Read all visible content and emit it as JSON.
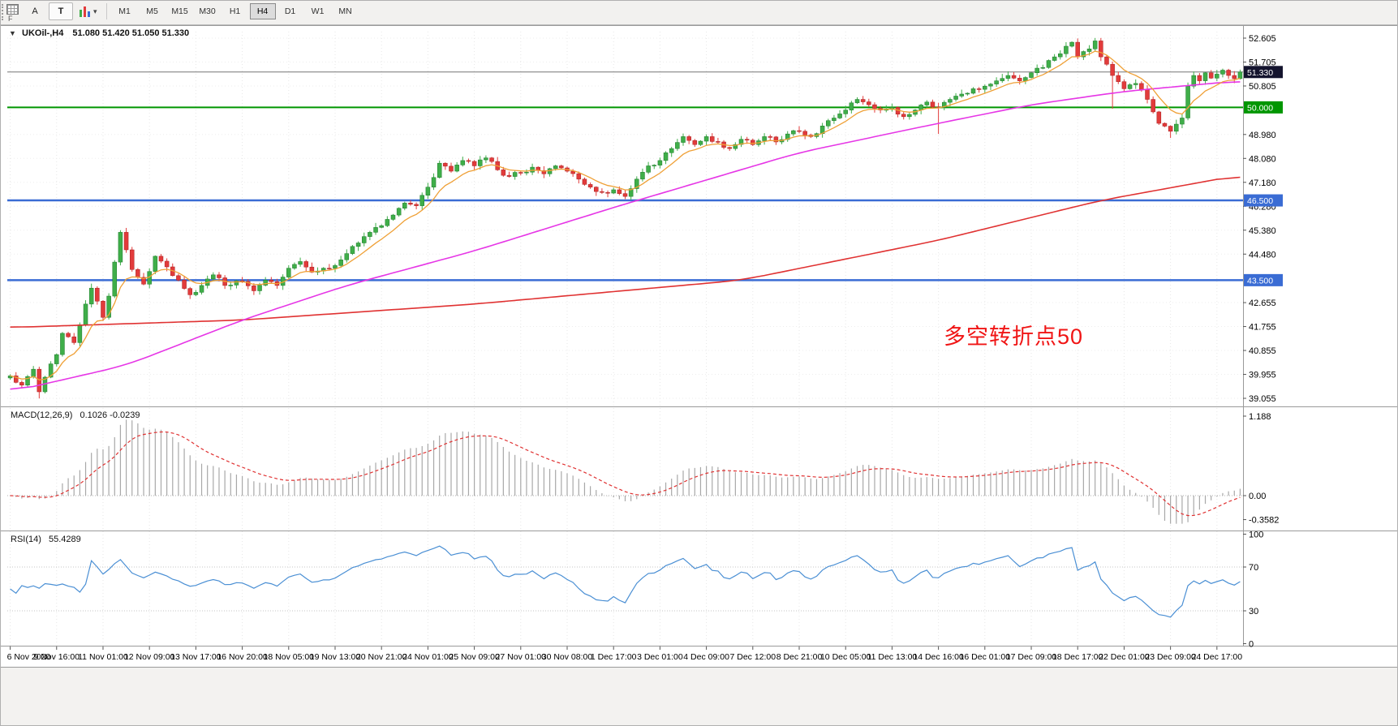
{
  "toolbar": {
    "buttons": {
      "annotate_text": "A",
      "text_tool": "T"
    },
    "indicator_caret": "▾",
    "timeframes": [
      "M1",
      "M5",
      "M15",
      "M30",
      "H1",
      "H4",
      "D1",
      "W1",
      "MN"
    ],
    "selected_timeframe": "H4",
    "f_label": "F"
  },
  "chart": {
    "title": "UKOil-,H4",
    "ohlc": "51.080 51.420 51.050 51.330",
    "collapse_icon": "▼",
    "annotation": "多空转折点50"
  },
  "indicators": {
    "macd": {
      "label": "MACD(12,26,9)",
      "values": "0.1026 -0.0239"
    },
    "rsi": {
      "label": "RSI(14)",
      "value": "55.4289"
    }
  },
  "chart_data": {
    "type": "candlestick",
    "symbol": "UKOil-",
    "timeframe": "H4",
    "bar_count": 213,
    "bars_per_label": 8,
    "current_bar": {
      "open": 51.08,
      "high": 51.42,
      "low": 51.05,
      "close": 51.33
    },
    "macd_params": [
      12,
      26,
      9
    ],
    "rsi_period": 14,
    "colors": {
      "bull": "#3fae49",
      "bull_border": "#1d7a2a",
      "bear": "#e23b3b",
      "bear_border": "#a81f1f",
      "ma_fast": "#efa036",
      "ma_mid": "#e636e6",
      "ma_slow": "#e03232",
      "macd_hist": "#a8a8a8",
      "macd_signal": "#e03232",
      "rsi": "#4a8fd4",
      "grid": "#e7e7e7",
      "hline_green": "#009600",
      "hline_blue": "#3a6cd4",
      "price_line": "#777777"
    },
    "hlines": [
      {
        "price": 50.0,
        "color": "#009600",
        "width": 2
      },
      {
        "price": 46.5,
        "color": "#3a6cd4",
        "width": 2.5
      },
      {
        "price": 43.5,
        "color": "#3a6cd4",
        "width": 2.5
      }
    ],
    "current_price_line": {
      "price": 51.33
    },
    "price_axis": {
      "labels": [
        {
          "v": 52.605,
          "t": "52.605"
        },
        {
          "v": 51.705,
          "t": "51.705"
        },
        {
          "v": 50.805,
          "t": "50.805"
        },
        {
          "v": 48.98,
          "t": "48.980"
        },
        {
          "v": 48.08,
          "t": "48.080"
        },
        {
          "v": 47.18,
          "t": "47.180"
        },
        {
          "v": 46.28,
          "t": "46.280"
        },
        {
          "v": 45.38,
          "t": "45.380"
        },
        {
          "v": 44.48,
          "t": "44.480"
        },
        {
          "v": 42.655,
          "t": "42.655"
        },
        {
          "v": 41.755,
          "t": "41.755"
        },
        {
          "v": 40.855,
          "t": "40.855"
        },
        {
          "v": 39.955,
          "t": "39.955"
        },
        {
          "v": 39.055,
          "t": "39.055"
        }
      ],
      "badges": [
        {
          "v": 51.33,
          "t": "51.330",
          "bg": "#14142e"
        },
        {
          "v": 50.0,
          "t": "50.000",
          "bg": "#009600"
        },
        {
          "v": 46.5,
          "t": "46.500",
          "bg": "#3a6cd4"
        },
        {
          "v": 43.5,
          "t": "43.500",
          "bg": "#3a6cd4"
        }
      ]
    },
    "macd_axis": [
      {
        "v": 1.188,
        "t": "1.188"
      },
      {
        "v": 0,
        "t": "0.00"
      },
      {
        "v": -0.3582,
        "t": "-0.3582"
      }
    ],
    "rsi_axis": [
      {
        "v": 100,
        "t": "100"
      },
      {
        "v": 70,
        "t": "70"
      },
      {
        "v": 30,
        "t": "30"
      },
      {
        "v": 0,
        "t": "0"
      }
    ],
    "rsi_levels": [
      70,
      30
    ],
    "x_labels": [
      "6 Nov 2020",
      "9 Nov 16:00",
      "11 Nov 01:00",
      "12 Nov 09:00",
      "13 Nov 17:00",
      "16 Nov 20:00",
      "18 Nov 05:00",
      "19 Nov 13:00",
      "20 Nov 21:00",
      "24 Nov 01:00",
      "25 Nov 09:00",
      "27 Nov 01:00",
      "30 Nov 08:00",
      "1 Dec 17:00",
      "3 Dec 01:00",
      "4 Dec 09:00",
      "7 Dec 12:00",
      "8 Dec 21:00",
      "10 Dec 05:00",
      "11 Dec 13:00",
      "14 Dec 16:00",
      "16 Dec 01:00",
      "17 Dec 09:00",
      "18 Dec 17:00",
      "22 Dec 01:00",
      "23 Dec 09:00",
      "24 Dec 17:00"
    ],
    "close_anchors": [
      [
        0,
        39.9
      ],
      [
        2,
        39.55
      ],
      [
        4,
        40.15
      ],
      [
        5,
        39.3
      ],
      [
        6,
        39.85
      ],
      [
        8,
        40.7
      ],
      [
        9,
        41.5
      ],
      [
        11,
        41.15
      ],
      [
        13,
        42.6
      ],
      [
        14,
        43.2
      ],
      [
        16,
        42.1
      ],
      [
        17,
        42.9
      ],
      [
        19,
        45.3
      ],
      [
        21,
        43.9
      ],
      [
        23,
        43.35
      ],
      [
        25,
        44.4
      ],
      [
        27,
        44.0
      ],
      [
        29,
        43.5
      ],
      [
        31,
        42.95
      ],
      [
        33,
        43.3
      ],
      [
        35,
        43.7
      ],
      [
        37,
        43.3
      ],
      [
        40,
        43.45
      ],
      [
        42,
        43.1
      ],
      [
        44,
        43.5
      ],
      [
        46,
        43.3
      ],
      [
        48,
        43.95
      ],
      [
        50,
        44.2
      ],
      [
        52,
        43.8
      ],
      [
        54,
        43.95
      ],
      [
        56,
        44.05
      ],
      [
        58,
        44.5
      ],
      [
        60,
        44.9
      ],
      [
        62,
        45.3
      ],
      [
        64,
        45.55
      ],
      [
        66,
        45.95
      ],
      [
        68,
        46.4
      ],
      [
        70,
        46.3
      ],
      [
        72,
        47.0
      ],
      [
        74,
        47.9
      ],
      [
        76,
        47.6
      ],
      [
        78,
        48.0
      ],
      [
        80,
        47.8
      ],
      [
        82,
        48.1
      ],
      [
        84,
        47.65
      ],
      [
        86,
        47.4
      ],
      [
        88,
        47.55
      ],
      [
        90,
        47.75
      ],
      [
        92,
        47.5
      ],
      [
        94,
        47.8
      ],
      [
        96,
        47.6
      ],
      [
        98,
        47.3
      ],
      [
        100,
        47.0
      ],
      [
        102,
        46.8
      ],
      [
        104,
        46.9
      ],
      [
        106,
        46.65
      ],
      [
        108,
        47.3
      ],
      [
        110,
        47.8
      ],
      [
        112,
        48.0
      ],
      [
        114,
        48.45
      ],
      [
        116,
        48.9
      ],
      [
        118,
        48.6
      ],
      [
        120,
        48.9
      ],
      [
        122,
        48.7
      ],
      [
        124,
        48.45
      ],
      [
        126,
        48.8
      ],
      [
        128,
        48.6
      ],
      [
        130,
        48.9
      ],
      [
        132,
        48.7
      ],
      [
        134,
        49.0
      ],
      [
        136,
        49.1
      ],
      [
        138,
        48.9
      ],
      [
        140,
        49.3
      ],
      [
        142,
        49.6
      ],
      [
        144,
        49.9
      ],
      [
        146,
        50.3
      ],
      [
        148,
        50.1
      ],
      [
        150,
        49.9
      ],
      [
        152,
        50.0
      ],
      [
        154,
        49.65
      ],
      [
        156,
        49.9
      ],
      [
        158,
        50.2
      ],
      [
        160,
        50.0
      ],
      [
        162,
        50.3
      ],
      [
        164,
        50.5
      ],
      [
        166,
        50.7
      ],
      [
        168,
        50.8
      ],
      [
        170,
        51.0
      ],
      [
        172,
        51.2
      ],
      [
        174,
        51.0
      ],
      [
        176,
        51.3
      ],
      [
        178,
        51.5
      ],
      [
        180,
        51.9
      ],
      [
        182,
        52.3
      ],
      [
        183,
        52.45
      ],
      [
        184,
        51.9
      ],
      [
        186,
        52.2
      ],
      [
        187,
        52.5
      ],
      [
        188,
        51.9
      ],
      [
        190,
        51.2
      ],
      [
        192,
        50.7
      ],
      [
        194,
        50.9
      ],
      [
        196,
        50.3
      ],
      [
        198,
        49.4
      ],
      [
        200,
        49.1
      ],
      [
        202,
        49.6
      ],
      [
        203,
        50.8
      ],
      [
        204,
        51.2
      ],
      [
        205,
        51.0
      ],
      [
        206,
        51.3
      ],
      [
        207,
        51.1
      ],
      [
        208,
        51.25
      ],
      [
        209,
        51.4
      ],
      [
        210,
        51.2
      ],
      [
        211,
        51.08
      ],
      [
        212,
        51.33
      ]
    ],
    "wick_overrides": {
      "5": {
        "l": 39.05
      },
      "19": {
        "h": 45.38
      },
      "160": {
        "l": 49.0
      },
      "187": {
        "h": 52.61
      },
      "190": {
        "l": 49.95
      },
      "200": {
        "l": 48.85
      },
      "212": {
        "h": 51.42,
        "l": 51.05
      }
    },
    "ma_mid_anchors": [
      [
        0,
        39.3
      ],
      [
        20,
        40.3
      ],
      [
        40,
        42.0
      ],
      [
        58,
        43.3
      ],
      [
        80,
        44.6
      ],
      [
        105,
        46.3
      ],
      [
        136,
        48.3
      ],
      [
        160,
        49.4
      ],
      [
        176,
        50.1
      ],
      [
        192,
        50.6
      ],
      [
        212,
        51.0
      ]
    ],
    "ma_slow_anchors": [
      [
        0,
        41.72
      ],
      [
        40,
        42.0
      ],
      [
        80,
        42.6
      ],
      [
        126,
        43.5
      ],
      [
        160,
        45.0
      ],
      [
        188,
        46.5
      ],
      [
        212,
        47.45
      ]
    ]
  }
}
